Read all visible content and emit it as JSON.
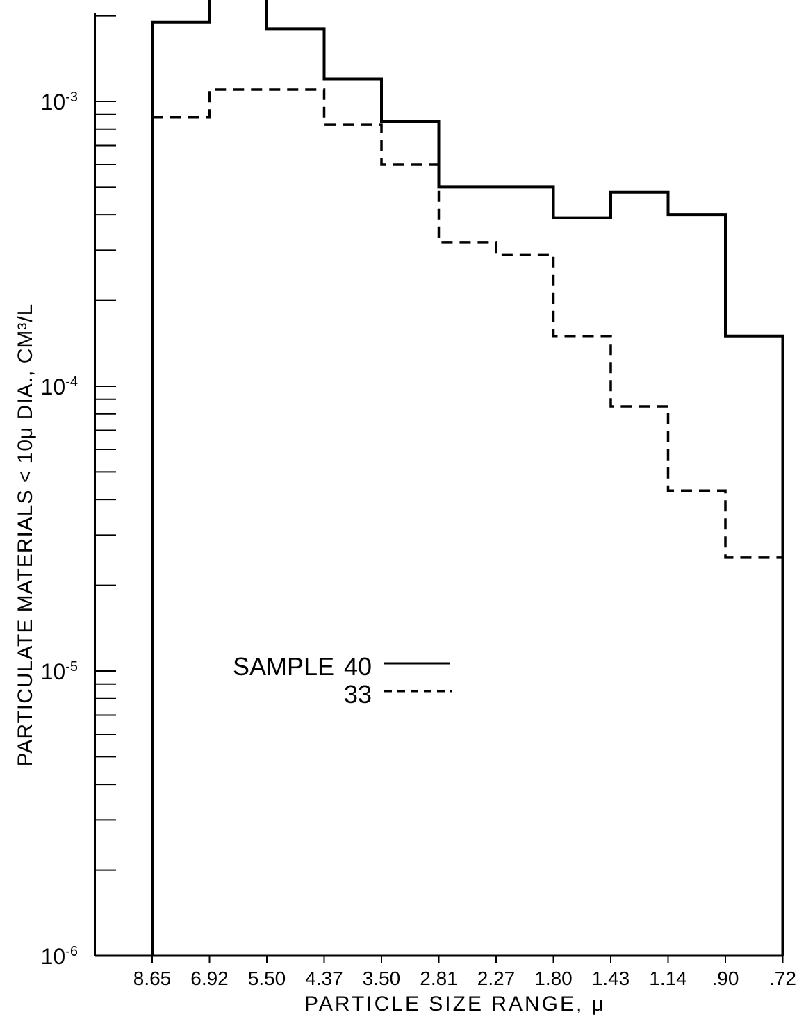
{
  "chart_data": {
    "type": "step",
    "xlabel": "PARTICLE SIZE RANGE, μ",
    "ylabel": "PARTICULATE MATERIALS < 10μ DIA., CM³/L",
    "y_scale": "log",
    "ylim": [
      1e-06,
      0.0025
    ],
    "y_ticks": [
      {
        "value": 0.001,
        "label": "10",
        "exp": "-3"
      },
      {
        "value": 0.0001,
        "label": "10",
        "exp": "-4"
      },
      {
        "value": 1e-05,
        "label": "10",
        "exp": "-5"
      },
      {
        "value": 1e-06,
        "label": "10",
        "exp": "-6"
      }
    ],
    "bin_edges": [
      "8.65",
      "6.92",
      "5.50",
      "4.37",
      "3.50",
      "2.81",
      "2.27",
      "1.80",
      "1.43",
      "1.14",
      ".90",
      ".72"
    ],
    "series": [
      {
        "name": "40",
        "style": "solid",
        "values": [
          0.0019,
          0.0023,
          0.0018,
          0.0012,
          0.00085,
          0.0005,
          0.0005,
          0.00039,
          0.00048,
          0.0004,
          0.00015
        ]
      },
      {
        "name": "33",
        "style": "dashed",
        "values": [
          0.00088,
          0.0011,
          0.0011,
          0.00083,
          0.0006,
          0.00032,
          0.00029,
          0.00015,
          8.5e-05,
          4.3e-05,
          2.5e-05
        ]
      }
    ],
    "legend": {
      "title": "SAMPLE",
      "position": "center-left"
    }
  }
}
